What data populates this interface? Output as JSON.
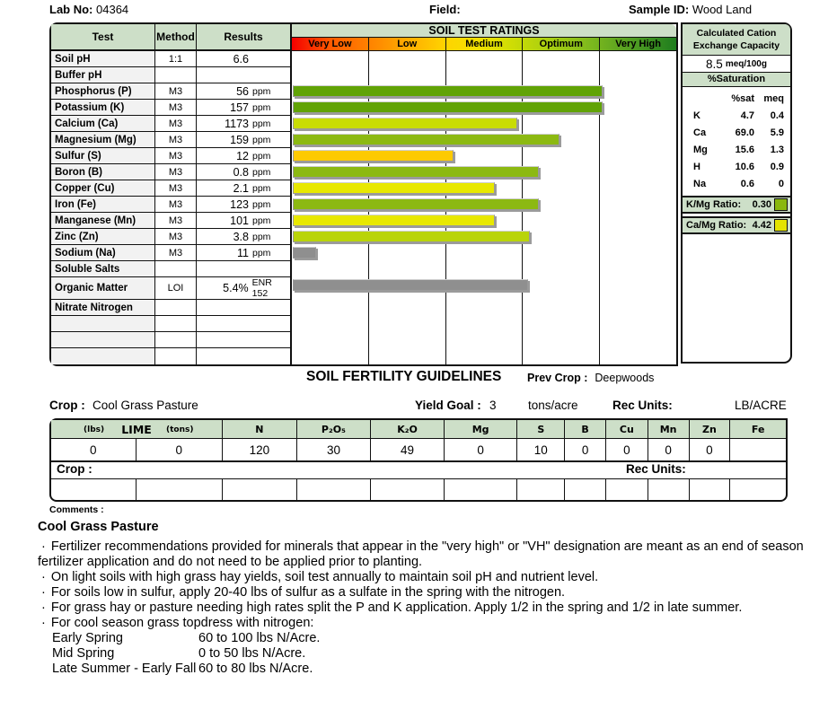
{
  "header": {
    "lab_no_label": "Lab No:",
    "lab_no": "04364",
    "field_label": "Field:",
    "sample_id_label": "Sample ID:",
    "sample_id": "Wood Land"
  },
  "colors": {
    "header_green": "#cddfc8",
    "dark_green_bar": "#61a306",
    "mid_green_bar": "#8cb912",
    "yellow_green_bar": "#c9dc04",
    "gold_bar": "#fdca01",
    "yellow_bar": "#e8e800",
    "gray_bar": "#8f8f8f"
  },
  "soil_table": {
    "col_headers": {
      "test": "Test",
      "method": "Method",
      "results": "Results"
    },
    "ratings_title": "SOIL TEST RATINGS",
    "rating_zones": [
      "Very Low",
      "Low",
      "Medium",
      "Optimum",
      "Very High"
    ],
    "rows": [
      {
        "test": "Soil pH",
        "method": "1:1",
        "value": "6.6",
        "unit": "",
        "bar_pct": 0,
        "bar_color": ""
      },
      {
        "test": "Buffer pH",
        "method": "",
        "value": "",
        "unit": "",
        "bar_pct": 0,
        "bar_color": ""
      },
      {
        "test": "Phosphorus (P)",
        "method": "M3",
        "value": "56",
        "unit": "ppm",
        "bar_pct": 80.5,
        "bar_color": "#61a306"
      },
      {
        "test": "Potassium (K)",
        "method": "M3",
        "value": "157",
        "unit": "ppm",
        "bar_pct": 80.5,
        "bar_color": "#61a306"
      },
      {
        "test": "Calcium (Ca)",
        "method": "M3",
        "value": "1173",
        "unit": "ppm",
        "bar_pct": 58.4,
        "bar_color": "#c9dc04"
      },
      {
        "test": "Magnesium (Mg)",
        "method": "M3",
        "value": "159",
        "unit": "ppm",
        "bar_pct": 69.3,
        "bar_color": "#8cb912"
      },
      {
        "test": "Sulfur (S)",
        "method": "M3",
        "value": "12",
        "unit": "ppm",
        "bar_pct": 41.9,
        "bar_color": "#fdca01"
      },
      {
        "test": "Boron (B)",
        "method": "M3",
        "value": "0.8",
        "unit": "ppm",
        "bar_pct": 64.0,
        "bar_color": "#8cb912"
      },
      {
        "test": "Copper (Cu)",
        "method": "M3",
        "value": "2.1",
        "unit": "ppm",
        "bar_pct": 52.6,
        "bar_color": "#e8e800"
      },
      {
        "test": "Iron (Fe)",
        "method": "M3",
        "value": "123",
        "unit": "ppm",
        "bar_pct": 64.0,
        "bar_color": "#8cb912"
      },
      {
        "test": "Manganese (Mn)",
        "method": "M3",
        "value": "101",
        "unit": "ppm",
        "bar_pct": 52.6,
        "bar_color": "#e8e800"
      },
      {
        "test": "Zinc (Zn)",
        "method": "M3",
        "value": "3.8",
        "unit": "ppm",
        "bar_pct": 61.6,
        "bar_color": "#b9d409"
      },
      {
        "test": "Sodium (Na)",
        "method": "M3",
        "value": "11",
        "unit": "ppm",
        "bar_pct": 6.0,
        "bar_color": "#8f8f8f"
      },
      {
        "test": "Soluble Salts",
        "method": "",
        "value": "",
        "unit": "",
        "bar_pct": 0,
        "bar_color": ""
      },
      {
        "test": "Organic Matter",
        "method": "LOI",
        "value": "5.4%",
        "unit": "ENR 152",
        "bar_pct": 61.2,
        "bar_color": "#8f8f8f"
      },
      {
        "test": "Nitrate Nitrogen",
        "method": "",
        "value": "",
        "unit": "",
        "bar_pct": 0,
        "bar_color": ""
      },
      {
        "test": "",
        "method": "",
        "value": "",
        "unit": "",
        "bar_pct": 0,
        "bar_color": ""
      },
      {
        "test": "",
        "method": "",
        "value": "",
        "unit": "",
        "bar_pct": 0,
        "bar_color": ""
      },
      {
        "test": "",
        "method": "",
        "value": "",
        "unit": "",
        "bar_pct": 0,
        "bar_color": ""
      }
    ]
  },
  "cec": {
    "title": "Calculated Cation Exchange Capacity",
    "value": "8.5",
    "unit": "meq/100g",
    "sat_title": "%Saturation",
    "col1": "%sat",
    "col2": "meq",
    "rows": [
      {
        "el": "K",
        "sat": "4.7",
        "meq": "0.4"
      },
      {
        "el": "Ca",
        "sat": "69.0",
        "meq": "5.9"
      },
      {
        "el": "Mg",
        "sat": "15.6",
        "meq": "1.3"
      },
      {
        "el": "H",
        "sat": "10.6",
        "meq": "0.9"
      },
      {
        "el": "Na",
        "sat": "0.6",
        "meq": "0"
      }
    ]
  },
  "ratios": [
    {
      "label": "K/Mg Ratio:",
      "value": "0.30",
      "swatch": "#8ab80e"
    },
    {
      "label": "Ca/Mg Ratio:",
      "value": "4.42",
      "swatch": "#e4e400"
    }
  ],
  "guidelines": {
    "title": "SOIL FERTILITY GUIDELINES",
    "prev_crop_label": "Prev Crop :",
    "prev_crop": "Deepwoods",
    "crop_label": "Crop :",
    "crop": "Cool Grass Pasture",
    "yield_label": "Yield Goal :",
    "yield_value": "3",
    "yield_units": "tons/acre",
    "rec_units_label": "Rec Units:",
    "rec_units": "LB/ACRE"
  },
  "fert_table": {
    "lime_lbs": "(lbs)",
    "lime": "LIME",
    "lime_tons": "(tons)",
    "cols": [
      "N",
      "P₂O₅",
      "K₂O",
      "Mg",
      "S",
      "B",
      "Cu",
      "Mn",
      "Zn",
      "Fe"
    ],
    "values": [
      "0",
      "0",
      "120",
      "30",
      "49",
      "0",
      "10",
      "0",
      "0",
      "0",
      "0",
      ""
    ]
  },
  "crop2": {
    "crop_label": "Crop :",
    "rec_units_label": "Rec Units:"
  },
  "comments": {
    "label": "Comments :",
    "heading": "Cool Grass Pasture",
    "bullets": [
      "Fertilizer recommendations provided for minerals that appear in the \"very high\" or \"VH\" designation are meant as an end of season fertilizer application and do not need to be applied prior to planting.",
      "On light soils with high grass hay yields, soil test annually to maintain soil pH and nutrient level.",
      "For soils low in sulfur, apply 20-40 lbs of sulfur as a sulfate in the spring with the nitrogen.",
      "For grass hay or pasture needing high rates split the P and K application.  Apply 1/2 in the spring and 1/2 in late summer.",
      "For cool season grass topdress with nitrogen:"
    ],
    "schedule": [
      {
        "season": "Early Spring",
        "rate": "60 to 100 lbs N/Acre."
      },
      {
        "season": "Mid Spring",
        "rate": "0 to 50 lbs N/Acre."
      },
      {
        "season": "Late Summer - Early Fall",
        "rate": "60 to  80 lbs N/Acre."
      }
    ]
  }
}
